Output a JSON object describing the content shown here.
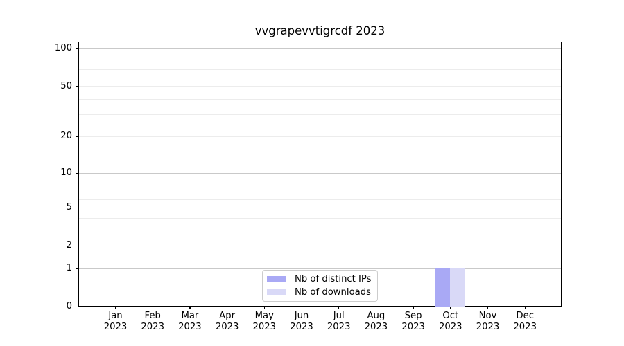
{
  "figure": {
    "title": "vvgrapevvtigrcdf 2023"
  },
  "y_axis": {
    "tick_labels": [
      "100",
      "50",
      "20",
      "10",
      "5",
      "2",
      "1",
      "0"
    ]
  },
  "x_axis": {
    "ticks": [
      {
        "month": "Jan",
        "year": "2023"
      },
      {
        "month": "Feb",
        "year": "2023"
      },
      {
        "month": "Mar",
        "year": "2023"
      },
      {
        "month": "Apr",
        "year": "2023"
      },
      {
        "month": "May",
        "year": "2023"
      },
      {
        "month": "Jun",
        "year": "2023"
      },
      {
        "month": "Jul",
        "year": "2023"
      },
      {
        "month": "Aug",
        "year": "2023"
      },
      {
        "month": "Sep",
        "year": "2023"
      },
      {
        "month": "Oct",
        "year": "2023"
      },
      {
        "month": "Nov",
        "year": "2023"
      },
      {
        "month": "Dec",
        "year": "2023"
      }
    ]
  },
  "legend": {
    "items": [
      {
        "label": "Nb of distinct IPs",
        "color": "#a9a9f5"
      },
      {
        "label": "Nb of downloads",
        "color": "#d9d9f7"
      }
    ]
  },
  "colors": {
    "major_grid": "#c9c9c9",
    "minor_grid": "#ececec",
    "spine": "#000000",
    "background": "#ffffff"
  },
  "chart_data": {
    "type": "bar",
    "title": "vvgrapevvtigrcdf 2023",
    "categories": [
      "Jan 2023",
      "Feb 2023",
      "Mar 2023",
      "Apr 2023",
      "May 2023",
      "Jun 2023",
      "Jul 2023",
      "Aug 2023",
      "Sep 2023",
      "Oct 2023",
      "Nov 2023",
      "Dec 2023"
    ],
    "series": [
      {
        "name": "Nb of distinct IPs",
        "color": "#a9a9f5",
        "values": [
          0,
          0,
          0,
          0,
          0,
          0,
          0,
          0,
          0,
          1,
          0,
          0
        ]
      },
      {
        "name": "Nb of downloads",
        "color": "#d9d9f7",
        "values": [
          0,
          0,
          0,
          0,
          0,
          0,
          0,
          0,
          0,
          1,
          0,
          0
        ]
      }
    ],
    "xlabel": "",
    "ylabel": "",
    "yscale": "symlog",
    "yticks": [
      0,
      1,
      2,
      5,
      10,
      20,
      50,
      100
    ],
    "ylim": [
      0,
      100
    ],
    "grid": "horizontal, log minor gridlines",
    "legend_position": "lower center inside plot"
  }
}
